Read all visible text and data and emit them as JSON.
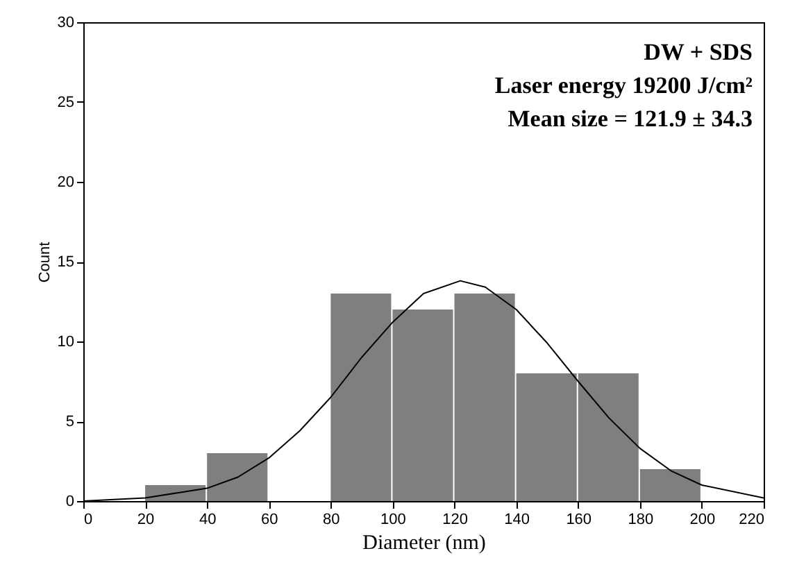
{
  "chart_data": {
    "type": "histogram",
    "xlabel": "Diameter (nm)",
    "ylabel": "Count",
    "annotations": [
      "DW + SDS",
      "Laser energy 19200 J/cm²",
      "Mean size = 121.9 ± 34.3"
    ],
    "bins": [
      20,
      40,
      60,
      80,
      100,
      120,
      140,
      160,
      180,
      200
    ],
    "series": [
      {
        "color": "#7f7f7f",
        "values": [
          1,
          3,
          0,
          13,
          12,
          13,
          8,
          8,
          2
        ]
      },
      {
        "type": "line",
        "color": "#000000",
        "x": [
          0,
          20,
          40,
          50,
          60,
          70,
          80,
          90,
          100,
          110,
          121.9,
          130,
          140,
          150,
          160,
          170,
          180,
          190,
          200,
          220
        ],
        "values": [
          0,
          0.2,
          0.8,
          1.5,
          2.7,
          4.4,
          6.5,
          9,
          11.2,
          13,
          13.8,
          13.4,
          12,
          9.9,
          7.5,
          5.2,
          3.3,
          1.9,
          1,
          0.2
        ]
      }
    ],
    "xlim": [
      0,
      220
    ],
    "xticks": [
      0,
      20,
      40,
      60,
      80,
      100,
      120,
      140,
      160,
      180,
      200,
      220
    ],
    "ylim": [
      0,
      30
    ],
    "yticks": [
      0,
      5,
      10,
      15,
      20,
      25,
      30
    ],
    "grid": false
  }
}
